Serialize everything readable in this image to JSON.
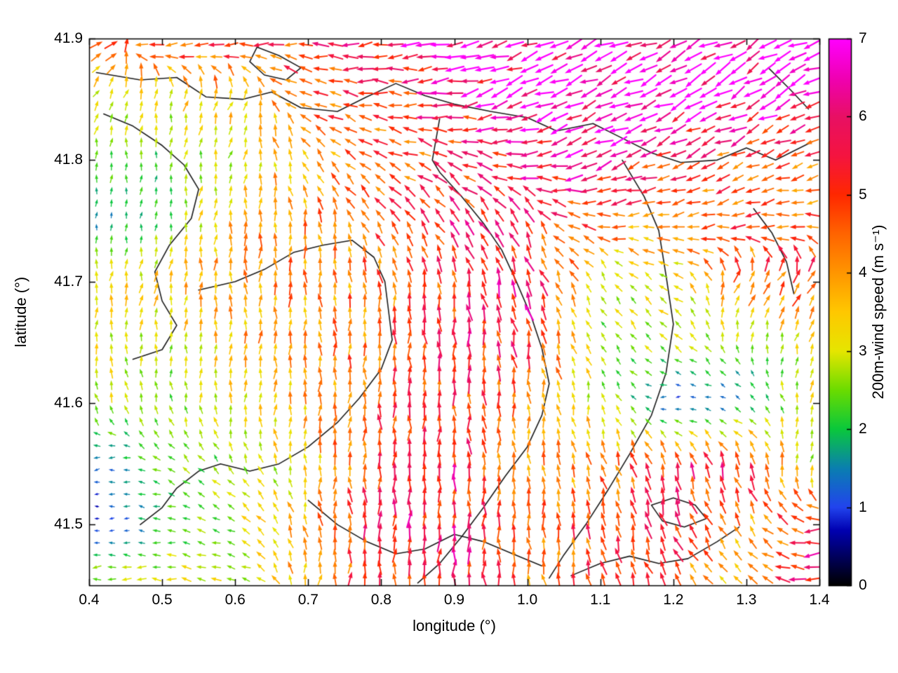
{
  "chart_data": {
    "type": "quiver",
    "title": "",
    "xlabel": "longitude (°)",
    "ylabel": "latitude (°)",
    "xlim": [
      0.4,
      1.4
    ],
    "ylim": [
      41.45,
      41.9
    ],
    "x_ticks": {
      "labels": [
        "0.4",
        "0.5",
        "0.6",
        "0.7",
        "0.8",
        "0.9",
        "1.0",
        "1.1",
        "1.2",
        "1.3",
        "1.4"
      ],
      "values": [
        0.4,
        0.5,
        0.6,
        0.7,
        0.8,
        0.9,
        1.0,
        1.1,
        1.2,
        1.3,
        1.4
      ]
    },
    "y_ticks": {
      "labels": [
        "41.5",
        "41.6",
        "41.7",
        "41.8",
        "41.9"
      ],
      "values": [
        41.5,
        41.6,
        41.7,
        41.8,
        41.9
      ]
    },
    "grid": false,
    "colorbar": {
      "label": "200m-wind speed (m s⁻¹)",
      "min": 0,
      "max": 7,
      "ticks": {
        "labels": [
          "0",
          "1",
          "2",
          "3",
          "4",
          "5",
          "6",
          "7"
        ],
        "values": [
          0,
          1,
          2,
          3,
          4,
          5,
          6,
          7
        ]
      },
      "colormap": [
        [
          0.0,
          "#000000"
        ],
        [
          0.7,
          "#0000b0"
        ],
        [
          1.0,
          "#2244ee"
        ],
        [
          1.5,
          "#0a7fb0"
        ],
        [
          2.0,
          "#0ac83c"
        ],
        [
          2.5,
          "#6bdc00"
        ],
        [
          3.0,
          "#e6e600"
        ],
        [
          3.5,
          "#ffc800"
        ],
        [
          4.0,
          "#ff9600"
        ],
        [
          4.5,
          "#ff6400"
        ],
        [
          5.0,
          "#ff2800"
        ],
        [
          5.5,
          "#f51440"
        ],
        [
          6.0,
          "#e81064"
        ],
        [
          6.5,
          "#f000b4"
        ],
        [
          7.0,
          "#ff00ff"
        ]
      ]
    },
    "wind_field": {
      "comment_units": "speed in m/s; direction in degrees CCW from east (90 = northward arrow); coarse grid estimated from figure",
      "lon": [
        0.4,
        0.5,
        0.6,
        0.7,
        0.8,
        0.9,
        1.0,
        1.1,
        1.2,
        1.3,
        1.4
      ],
      "lat": [
        41.9,
        41.85,
        41.8,
        41.75,
        41.7,
        41.65,
        41.6,
        41.55,
        41.5,
        41.45
      ],
      "speed": [
        [
          4.2,
          4.8,
          5.0,
          5.2,
          6.0,
          6.5,
          6.8,
          7.0,
          7.0,
          6.8,
          6.5
        ],
        [
          3.0,
          3.2,
          3.6,
          4.6,
          5.0,
          5.8,
          6.5,
          6.8,
          7.0,
          6.8,
          6.5
        ],
        [
          2.5,
          2.2,
          3.0,
          4.0,
          4.6,
          5.0,
          6.0,
          6.5,
          5.2,
          4.6,
          4.5
        ],
        [
          1.2,
          2.2,
          3.8,
          4.2,
          4.6,
          5.5,
          5.2,
          4.5,
          4.2,
          4.8,
          4.5
        ],
        [
          3.0,
          3.8,
          4.0,
          4.2,
          4.4,
          5.2,
          5.8,
          2.8,
          3.2,
          4.5,
          5.0
        ],
        [
          3.0,
          2.8,
          3.8,
          4.0,
          4.6,
          5.4,
          5.6,
          2.5,
          2.8,
          2.5,
          3.0
        ],
        [
          3.0,
          2.5,
          3.2,
          3.8,
          5.0,
          5.2,
          4.2,
          3.0,
          0.8,
          1.5,
          3.5
        ],
        [
          1.0,
          2.5,
          2.5,
          3.5,
          5.0,
          5.5,
          4.0,
          4.2,
          5.2,
          5.5,
          2.5
        ],
        [
          0.6,
          2.0,
          2.8,
          3.8,
          6.0,
          5.5,
          4.5,
          5.0,
          5.2,
          4.0,
          5.5
        ],
        [
          3.0,
          3.0,
          2.8,
          4.0,
          5.2,
          5.8,
          4.2,
          5.0,
          4.5,
          3.5,
          6.5
        ]
      ],
      "direction_deg": [
        [
          25,
          195,
          185,
          180,
          190,
          195,
          200,
          200,
          205,
          210,
          205
        ],
        [
          60,
          80,
          70,
          160,
          170,
          190,
          200,
          205,
          205,
          210,
          200
        ],
        [
          90,
          90,
          75,
          120,
          160,
          150,
          190,
          200,
          205,
          200,
          195
        ],
        [
          90,
          80,
          90,
          95,
          120,
          130,
          115,
          180,
          190,
          190,
          180
        ],
        [
          80,
          85,
          90,
          90,
          95,
          100,
          110,
          115,
          150,
          60,
          50
        ],
        [
          85,
          90,
          90,
          90,
          90,
          95,
          100,
          120,
          140,
          90,
          70
        ],
        [
          110,
          100,
          90,
          85,
          90,
          90,
          95,
          100,
          190,
          150,
          80
        ],
        [
          200,
          150,
          120,
          90,
          90,
          90,
          95,
          110,
          100,
          110,
          60
        ],
        [
          180,
          170,
          160,
          100,
          90,
          85,
          95,
          95,
          110,
          120,
          190
        ],
        [
          180,
          175,
          170,
          80,
          90,
          90,
          100,
          100,
          120,
          150,
          185
        ]
      ]
    },
    "contours": [
      [
        [
          0.41,
          41.872
        ],
        [
          0.47,
          41.866
        ],
        [
          0.52,
          41.868
        ],
        [
          0.56,
          41.852
        ],
        [
          0.61,
          41.85
        ],
        [
          0.65,
          41.856
        ],
        [
          0.69,
          41.843
        ],
        [
          0.74,
          41.84
        ],
        [
          0.78,
          41.852
        ],
        [
          0.82,
          41.863
        ],
        [
          0.86,
          41.853
        ],
        [
          0.9,
          41.846
        ],
        [
          0.95,
          41.84
        ],
        [
          1.0,
          41.835
        ],
        [
          1.04,
          41.824
        ],
        [
          1.09,
          41.83
        ],
        [
          1.13,
          41.818
        ],
        [
          1.17,
          41.806
        ],
        [
          1.21,
          41.798
        ],
        [
          1.26,
          41.8
        ],
        [
          1.3,
          41.81
        ],
        [
          1.34,
          41.8
        ],
        [
          1.39,
          41.815
        ]
      ],
      [
        [
          0.42,
          41.838
        ],
        [
          0.46,
          41.828
        ],
        [
          0.5,
          41.812
        ],
        [
          0.53,
          41.796
        ],
        [
          0.55,
          41.776
        ],
        [
          0.54,
          41.752
        ],
        [
          0.51,
          41.73
        ],
        [
          0.49,
          41.708
        ],
        [
          0.5,
          41.684
        ],
        [
          0.52,
          41.664
        ],
        [
          0.5,
          41.644
        ],
        [
          0.46,
          41.636
        ]
      ],
      [
        [
          0.63,
          41.893
        ],
        [
          0.66,
          41.886
        ],
        [
          0.69,
          41.876
        ],
        [
          0.67,
          41.866
        ],
        [
          0.64,
          41.87
        ],
        [
          0.62,
          41.881
        ],
        [
          0.63,
          41.893
        ]
      ],
      [
        [
          0.55,
          41.693
        ],
        [
          0.6,
          41.7
        ],
        [
          0.64,
          41.71
        ],
        [
          0.68,
          41.724
        ],
        [
          0.72,
          41.73
        ],
        [
          0.76,
          41.734
        ],
        [
          0.79,
          41.72
        ],
        [
          0.805,
          41.7
        ],
        [
          0.81,
          41.676
        ],
        [
          0.815,
          41.652
        ],
        [
          0.8,
          41.628
        ],
        [
          0.77,
          41.604
        ],
        [
          0.74,
          41.584
        ],
        [
          0.7,
          41.564
        ],
        [
          0.66,
          41.55
        ],
        [
          0.62,
          41.544
        ],
        [
          0.58,
          41.55
        ],
        [
          0.55,
          41.544
        ],
        [
          0.52,
          41.53
        ],
        [
          0.5,
          41.514
        ],
        [
          0.47,
          41.5
        ]
      ],
      [
        [
          0.88,
          41.834
        ],
        [
          0.87,
          41.8
        ],
        [
          0.88,
          41.79
        ],
        [
          0.91,
          41.77
        ],
        [
          0.94,
          41.748
        ],
        [
          0.965,
          41.726
        ],
        [
          0.985,
          41.7
        ],
        [
          1.005,
          41.672
        ],
        [
          1.02,
          41.645
        ],
        [
          1.03,
          41.616
        ],
        [
          1.02,
          41.59
        ],
        [
          1.0,
          41.564
        ],
        [
          0.97,
          41.54
        ],
        [
          0.94,
          41.514
        ],
        [
          0.91,
          41.49
        ],
        [
          0.88,
          41.468
        ],
        [
          0.85,
          41.452
        ]
      ],
      [
        [
          1.13,
          41.8
        ],
        [
          1.16,
          41.77
        ],
        [
          1.18,
          41.742
        ],
        [
          1.19,
          41.705
        ],
        [
          1.2,
          41.665
        ],
        [
          1.19,
          41.625
        ],
        [
          1.17,
          41.59
        ],
        [
          1.14,
          41.558
        ],
        [
          1.11,
          41.528
        ],
        [
          1.08,
          41.5
        ],
        [
          1.05,
          41.475
        ],
        [
          1.03,
          41.456
        ]
      ],
      [
        [
          0.7,
          41.52
        ],
        [
          0.74,
          41.5
        ],
        [
          0.78,
          41.486
        ],
        [
          0.82,
          41.476
        ],
        [
          0.86,
          41.48
        ],
        [
          0.9,
          41.492
        ],
        [
          0.94,
          41.486
        ],
        [
          0.98,
          41.476
        ],
        [
          1.02,
          41.466
        ]
      ],
      [
        [
          1.17,
          41.516
        ],
        [
          1.2,
          41.522
        ],
        [
          1.23,
          41.516
        ],
        [
          1.245,
          41.505
        ],
        [
          1.215,
          41.498
        ],
        [
          1.185,
          41.503
        ],
        [
          1.17,
          41.516
        ]
      ],
      [
        [
          1.33,
          41.876
        ],
        [
          1.36,
          41.858
        ],
        [
          1.385,
          41.842
        ]
      ],
      [
        [
          1.31,
          41.76
        ],
        [
          1.335,
          41.74
        ],
        [
          1.355,
          41.716
        ],
        [
          1.365,
          41.69
        ]
      ],
      [
        [
          1.06,
          41.458
        ],
        [
          1.1,
          41.468
        ],
        [
          1.14,
          41.474
        ],
        [
          1.18,
          41.468
        ],
        [
          1.22,
          41.472
        ],
        [
          1.26,
          41.486
        ],
        [
          1.29,
          41.498
        ]
      ]
    ],
    "arrow_grid": {
      "nx": 49,
      "ny": 45
    }
  },
  "styles": {
    "background": "#ffffff",
    "axis_color": "#000000",
    "contour_color": "#1c1c1c",
    "text_color": "#000000"
  }
}
